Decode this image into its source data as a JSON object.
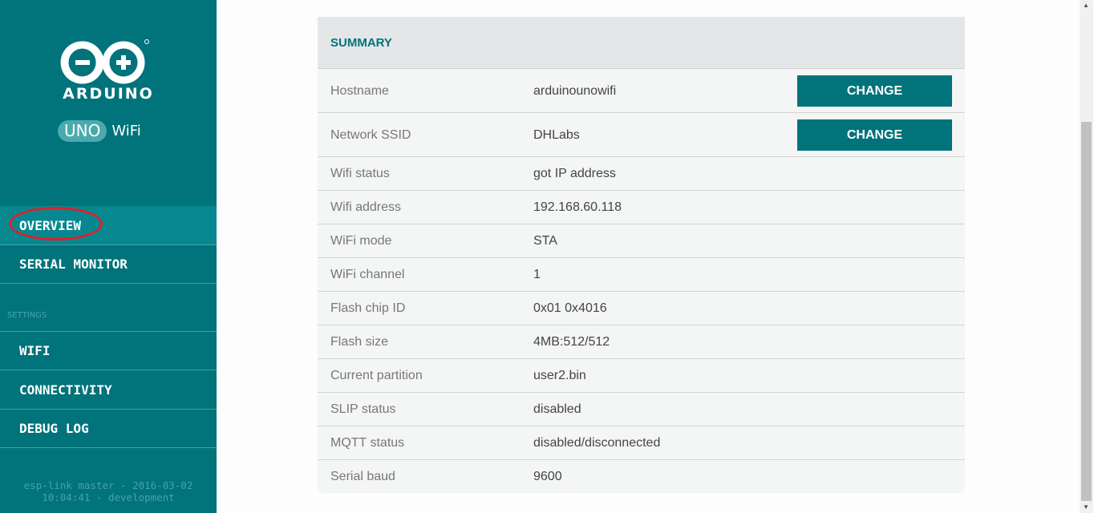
{
  "sidebar": {
    "brand": "ARDUINO",
    "board": "UNO",
    "board_suffix": "WiFi",
    "nav": [
      {
        "label": "OVERVIEW",
        "active": true
      },
      {
        "label": "SERIAL MONITOR"
      }
    ],
    "section": "SETTINGS",
    "settings": [
      {
        "label": "WIFI"
      },
      {
        "label": "CONNECTIVITY"
      },
      {
        "label": "DEBUG LOG"
      }
    ],
    "footer_line1": "esp-link master - 2016-03-02",
    "footer_line2": "10:04:41 - development"
  },
  "summary": {
    "title": "SUMMARY",
    "change_label": "CHANGE",
    "rows": [
      {
        "label": "Hostname",
        "value": "arduinounowifi"
      },
      {
        "label": "Network SSID",
        "value": "DHLabs"
      },
      {
        "label": "Wifi status",
        "value": "got IP address"
      },
      {
        "label": "Wifi address",
        "value": "192.168.60.118"
      },
      {
        "label": "WiFi mode",
        "value": "STA"
      },
      {
        "label": "WiFi channel",
        "value": "1"
      },
      {
        "label": "Flash chip ID",
        "value": "0x01 0x4016"
      },
      {
        "label": "Flash size",
        "value": "4MB:512/512"
      },
      {
        "label": "Current partition",
        "value": "user2.bin"
      },
      {
        "label": "SLIP status",
        "value": "disabled"
      },
      {
        "label": "MQTT status",
        "value": "disabled/disconnected"
      },
      {
        "label": "Serial baud",
        "value": "9600"
      }
    ]
  },
  "colors": {
    "brand": "#00737b",
    "highlight": "#e0202a"
  }
}
